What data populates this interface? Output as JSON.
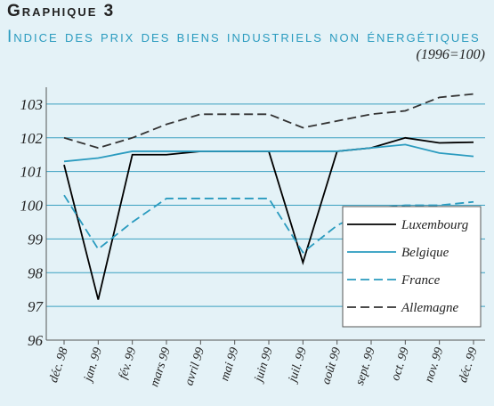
{
  "chart_data": {
    "type": "line",
    "title": "Graphique 3",
    "subtitle": "Indice des prix des biens industriels non énergétiques",
    "unit_note": "(1996=100)",
    "categories": [
      "déc. 98",
      "jan. 99",
      "fév. 99",
      "mars 99",
      "avril 99",
      "mai 99",
      "juin 99",
      "juil. 99",
      "août 99",
      "sept. 99",
      "oct. 99",
      "nov. 99",
      "déc. 99"
    ],
    "series": [
      {
        "name": "Luxembourg",
        "color": "#000000",
        "dash": "solid",
        "values": [
          101.2,
          97.2,
          101.5,
          101.5,
          101.6,
          101.6,
          101.6,
          98.3,
          101.6,
          101.7,
          102.0,
          101.85,
          101.87
        ]
      },
      {
        "name": "Belgique",
        "color": "#2a9bbf",
        "dash": "solid",
        "values": [
          101.3,
          101.4,
          101.6,
          101.6,
          101.6,
          101.6,
          101.6,
          101.6,
          101.6,
          101.7,
          101.8,
          101.55,
          101.45
        ]
      },
      {
        "name": "France",
        "color": "#2a9bbf",
        "dash": "dashed",
        "values": [
          100.3,
          98.7,
          99.5,
          100.2,
          100.2,
          100.2,
          100.2,
          98.6,
          99.4,
          99.9,
          100.0,
          100.0,
          100.1
        ]
      },
      {
        "name": "Allemagne",
        "color": "#333333",
        "dash": "dashed",
        "values": [
          102.0,
          101.7,
          102.0,
          102.4,
          102.7,
          102.7,
          102.7,
          102.3,
          102.5,
          102.7,
          102.8,
          103.2,
          103.3
        ]
      }
    ],
    "ylim": [
      96,
      103.5
    ],
    "yticks": [
      96,
      97,
      98,
      99,
      100,
      101,
      102,
      103
    ],
    "grid": true,
    "legend": "lower right"
  }
}
